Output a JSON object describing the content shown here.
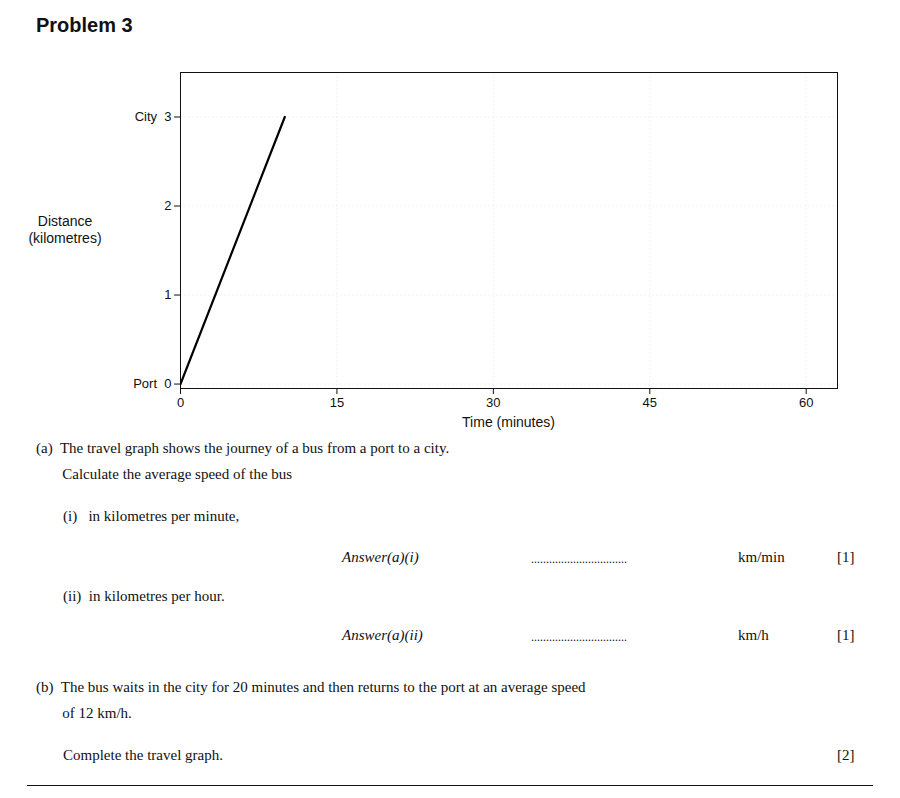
{
  "chart_data": {
    "type": "line",
    "title": "Problem 3",
    "x_label": "Time (minutes)",
    "y_label": [
      "Distance",
      "(kilometres)"
    ],
    "x": [
      0,
      10
    ],
    "values": [
      0,
      3
    ],
    "color": "#000000",
    "xlim": [
      0,
      63
    ],
    "ylim": [
      -0.05,
      3.5
    ],
    "xticks": [
      0,
      15,
      30,
      45,
      60
    ],
    "yticks": [
      {
        "value": 0,
        "label": "Port  0"
      },
      1,
      2,
      {
        "value": 3,
        "label": "City  3"
      }
    ],
    "grid": true,
    "annotations": [
      [
        "(a)  The travel graph shows the journey of a bus from a port to a city."
      ],
      [
        "       Calculate the average speed of the bus"
      ],
      [
        "(i)   in kilometres per minute,"
      ],
      [
        "Answer(a)(i)",
        "................................",
        "km/min",
        "[1]"
      ],
      [
        "(ii)  in kilometres per hour."
      ],
      [
        "Answer(a)(ii)",
        "................................",
        "km/h",
        "[1]"
      ],
      [
        "(b)  The bus waits in the city for 20 minutes and then returns to the port at an average speed"
      ],
      [
        "       of 12 km/h."
      ],
      [
        "Complete the travel graph.",
        "[2]"
      ]
    ]
  }
}
